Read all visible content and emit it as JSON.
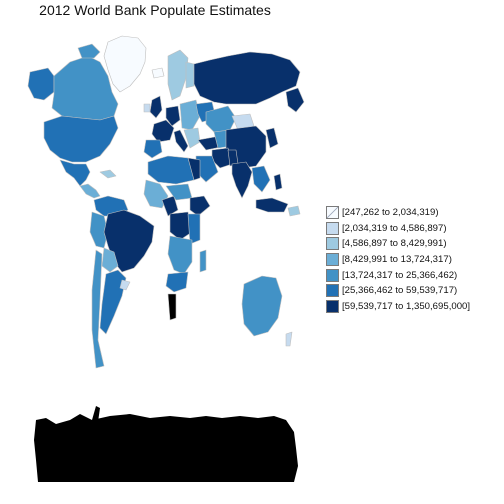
{
  "title": "2012 World Bank Populate Estimates",
  "palette": [
    "#f7fbff",
    "#c6dbef",
    "#9ecae1",
    "#6baed6",
    "#4292c6",
    "#2171b5",
    "#08306b"
  ],
  "antarctica_color": "#000000",
  "legend": {
    "bins": [
      {
        "label": "[247,262 to 2,034,319)",
        "color": "#f7fbff"
      },
      {
        "label": "[2,034,319 to 4,586,897)",
        "color": "#c6dbef"
      },
      {
        "label": "[4,586,897 to 8,429,991)",
        "color": "#9ecae1"
      },
      {
        "label": "[8,429,991 to 13,724,317)",
        "color": "#6baed6"
      },
      {
        "label": "[13,724,317 to 25,366,462)",
        "color": "#4292c6"
      },
      {
        "label": "[25,366,462 to 59,539,717)",
        "color": "#2171b5"
      },
      {
        "label": "[59,539,717 to 1,350,695,000]",
        "color": "#08306b"
      }
    ]
  }
}
